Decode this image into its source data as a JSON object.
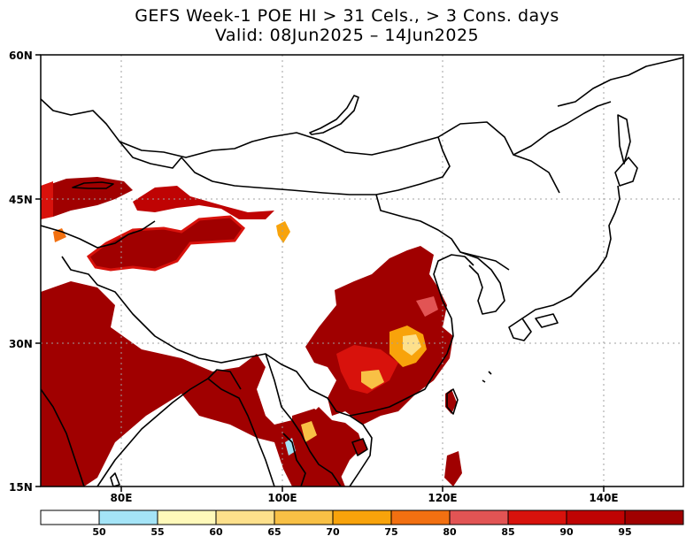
{
  "title": {
    "line1": "GEFS Week-1 POE HI > 31 Cels., > 3 Cons. days",
    "line2": "Valid: 08Jun2025 – 14Jun2025"
  },
  "axes": {
    "y_labels": [
      "60N",
      "45N",
      "30N",
      "15N"
    ],
    "x_labels": [
      "80E",
      "100E",
      "120E",
      "140E"
    ],
    "lat_range": [
      15,
      60
    ],
    "lon_range": [
      70,
      150
    ],
    "grid": "dotted"
  },
  "colorbar": {
    "ticks": [
      "50",
      "55",
      "60",
      "65",
      "70",
      "75",
      "80",
      "85",
      "90",
      "95"
    ],
    "colors": [
      "#ffffff",
      "#a4e4f7",
      "#fff9ba",
      "#fde08b",
      "#f8c045",
      "#f8a30b",
      "#f27011",
      "#e25454",
      "#d8120c",
      "#bf0303",
      "#a00000"
    ]
  },
  "map_regions": [
    "Indian subcontinent",
    "Tarim Basin",
    "Dzungaria",
    "Eastern China",
    "Korea",
    "Japan",
    "Taiwan",
    "Hainan"
  ]
}
